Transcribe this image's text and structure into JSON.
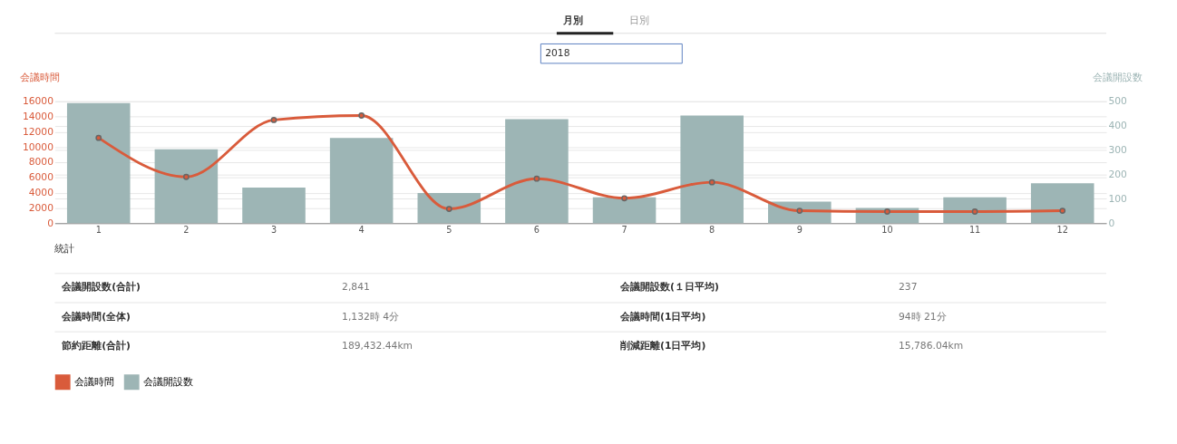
{
  "chart_data": {
    "type": "bar",
    "categories": [
      "1",
      "2",
      "3",
      "4",
      "5",
      "6",
      "7",
      "8",
      "9",
      "10",
      "11",
      "12"
    ],
    "ylabel": "会議時間",
    "y2label": "会議開設数",
    "series": [
      {
        "name": "会議時間",
        "type": "line",
        "color": "#d95b3b",
        "values": [
          11200,
          6070,
          13550,
          14130,
          1870,
          5840,
          3270,
          5370,
          1630,
          1520,
          1520,
          1630
        ]
      },
      {
        "name": "会議開設数",
        "axis": "y2",
        "color": "#9db5b5",
        "values": [
          493,
          303,
          146,
          350,
          124,
          427,
          106,
          442,
          88,
          62,
          106,
          164
        ]
      }
    ],
    "ylim": [
      0,
      16000
    ],
    "yticks": [
      0,
      2000,
      4000,
      6000,
      8000,
      10000,
      12000,
      14000,
      16000
    ],
    "y2lim": [
      0,
      500
    ],
    "y2ticks": [
      0,
      100,
      200,
      300,
      400,
      500
    ],
    "grid": true,
    "legend": "bottom",
    "marker": "circle",
    "line_style": "solid",
    "annotations": [
      "月別",
      "日別",
      "2018",
      "統計",
      "会議開設数(合計)",
      "2,841",
      "会議開設数(１日平均)",
      "237",
      "会議時間(全体)",
      "1,132時 4分",
      "会議時間(1日平均)",
      "94時 21分",
      "節約距離(合計)",
      "189,432.44km",
      "削減距離(1日平均)",
      "15,786.04km"
    ]
  }
}
